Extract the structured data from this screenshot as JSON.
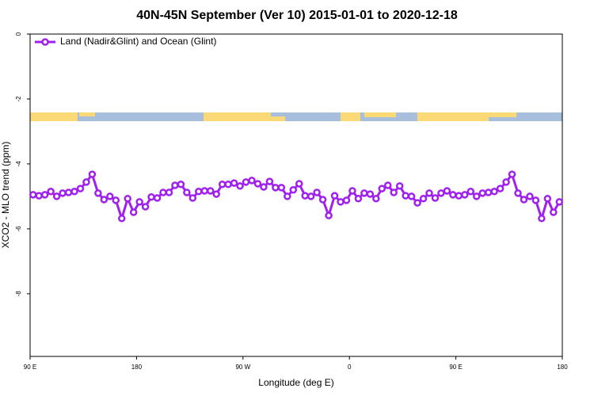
{
  "chart_data": {
    "type": "line",
    "title": "40N-45N September (Ver 10)   2015-01-01 to 2020-12-18",
    "x_label": "Longitude (deg E)",
    "y_label": "XCO2 - MLO trend (ppm)",
    "x": [
      92.5,
      97.5,
      102.5,
      107.5,
      112.5,
      117.5,
      122.5,
      127.5,
      132.5,
      137.5,
      142.5,
      147.5,
      152.5,
      157.5,
      162.5,
      167.5,
      172.5,
      177.5,
      182.5,
      187.5,
      192.5,
      197.5,
      202.5,
      207.5,
      212.5,
      217.5,
      222.5,
      227.5,
      232.5,
      237.5,
      242.5,
      247.5,
      252.5,
      257.5,
      262.5,
      267.5,
      272.5,
      277.5,
      282.5,
      287.5,
      292.5,
      297.5,
      302.5,
      307.5,
      312.5,
      317.5,
      322.5,
      327.5,
      332.5,
      337.5,
      342.5,
      347.5,
      352.5,
      357.5,
      362.5,
      367.5,
      372.5,
      377.5,
      382.5,
      387.5,
      392.5,
      397.5,
      402.5,
      407.5,
      412.5,
      417.5,
      422.5,
      427.5,
      432.5,
      437.5,
      442.5,
      447.5,
      452.5,
      457.5,
      462.5,
      467.5,
      472.5,
      477.5,
      482.5,
      487.5,
      492.5,
      497.5,
      502.5,
      507.5,
      512.5,
      517.5,
      522.5,
      527.5,
      532.5,
      537.5
    ],
    "series": [
      {
        "name": "Land (Nadir&Glint) and Ocean (Glint)",
        "color": "#a020f0",
        "values": [
          -4.95,
          -4.98,
          -4.95,
          -4.85,
          -5.0,
          -4.9,
          -4.88,
          -4.85,
          -4.76,
          -4.56,
          -4.32,
          -4.9,
          -5.1,
          -5.0,
          -5.12,
          -5.68,
          -5.07,
          -5.49,
          -5.17,
          -5.32,
          -5.02,
          -5.05,
          -4.88,
          -4.88,
          -4.66,
          -4.63,
          -4.88,
          -5.05,
          -4.85,
          -4.83,
          -4.83,
          -4.93,
          -4.63,
          -4.63,
          -4.59,
          -4.68,
          -4.56,
          -4.51,
          -4.61,
          -4.71,
          -4.54,
          -4.73,
          -4.73,
          -5.0,
          -4.8,
          -4.61,
          -4.98,
          -5.0,
          -4.88,
          -5.1,
          -5.59,
          -4.98,
          -5.17,
          -5.12,
          -4.83,
          -5.07,
          -4.9,
          -4.93,
          -5.07,
          -4.76,
          -4.66,
          -4.88,
          -4.68,
          -4.98,
          -5.0,
          -5.2,
          -5.07,
          -4.9,
          -5.05,
          -4.9,
          -4.83,
          -4.95,
          -4.98,
          -4.95,
          -4.85,
          -5.0,
          -4.9,
          -4.88,
          -4.85,
          -4.76,
          -4.56,
          -4.32,
          -4.9,
          -5.1,
          -5.0,
          -5.12,
          -5.68,
          -5.07,
          -5.49,
          -5.17
        ]
      }
    ],
    "xlim": [
      90,
      540
    ],
    "xticks": [
      {
        "value": 90,
        "label": "90 E"
      },
      180,
      {
        "value": 270,
        "label": "90 W"
      },
      {
        "value": 360,
        "label": "0"
      },
      {
        "value": 450,
        "label": "90 E"
      },
      {
        "value": 540,
        "label": "180"
      }
    ],
    "ylim": [
      -9.93,
      0
    ],
    "yticks": [
      0,
      -2,
      -4,
      -6,
      -8
    ],
    "legend": "top-left"
  }
}
